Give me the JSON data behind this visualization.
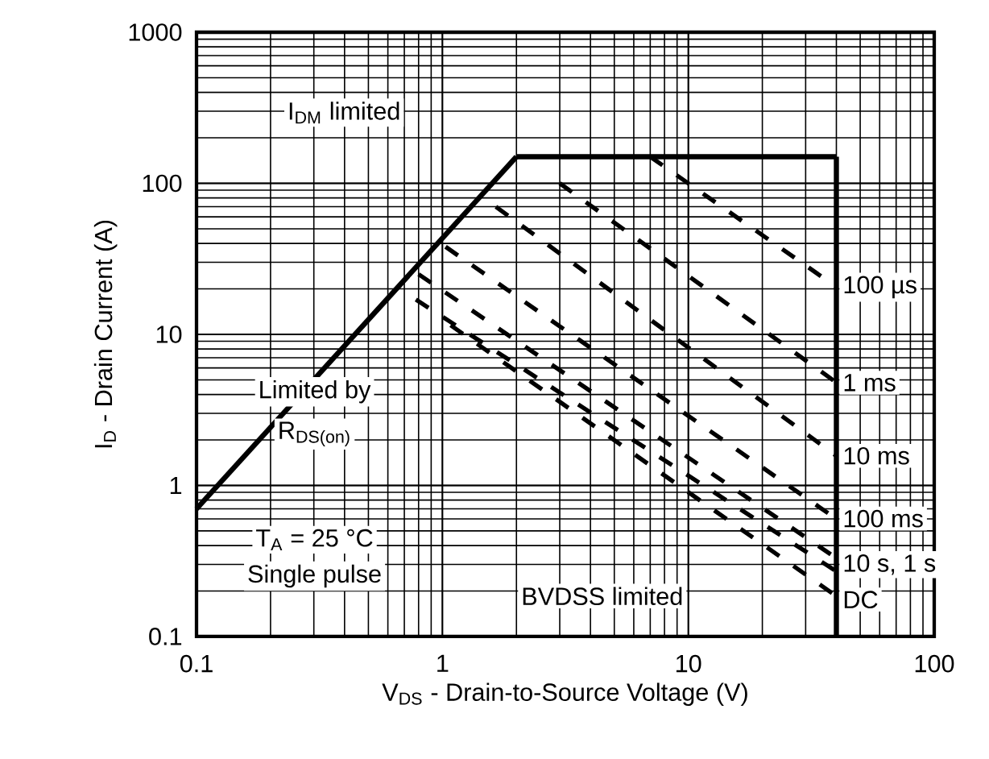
{
  "chart_data": {
    "type": "line",
    "xlabel": "V$_{DS}$ - Drain-to-Source Voltage (V)",
    "ylabel": "I$_{D}$ - Drain Current (A)",
    "log": "xy",
    "grid": true,
    "xlim": [
      0.1,
      100
    ],
    "ylim": [
      0.1,
      1000
    ],
    "xticks": [
      0.1,
      1,
      10,
      100
    ],
    "yticks": [
      0.1,
      1,
      10,
      100,
      1000
    ],
    "series": [
      {
        "x": [
          0.1,
          2
        ],
        "values": [
          0.7,
          150
        ],
        "color": "#000000",
        "line_style": "solid"
      },
      {
        "x": [
          2,
          40
        ],
        "values": [
          150,
          150
        ],
        "color": "#000000",
        "line_style": "solid"
      },
      {
        "x": [
          40,
          40
        ],
        "values": [
          150,
          0.1
        ],
        "color": "#000000",
        "line_style": "solid"
      },
      {
        "x": [
          7,
          40
        ],
        "values": [
          150,
          20.6
        ],
        "color": "#000000",
        "line_style": "dashed"
      },
      {
        "x": [
          3,
          40
        ],
        "values": [
          100,
          4.8
        ],
        "color": "#000000",
        "line_style": "dashed"
      },
      {
        "x": [
          1.65,
          40
        ],
        "values": [
          70,
          1.57
        ],
        "color": "#000000",
        "line_style": "dashed"
      },
      {
        "x": [
          1.03,
          40
        ],
        "values": [
          38,
          0.6
        ],
        "color": "#000000",
        "line_style": "dashed"
      },
      {
        "x": [
          0.8,
          40
        ],
        "values": [
          25,
          0.33
        ],
        "color": "#000000",
        "line_style": "dashed"
      },
      {
        "x": [
          0.78,
          40
        ],
        "values": [
          17,
          0.27
        ],
        "color": "#000000",
        "line_style": "dashed"
      },
      {
        "x": [
          1.08,
          40
        ],
        "values": [
          11.5,
          0.185
        ],
        "color": "#000000",
        "line_style": "dashed"
      }
    ],
    "annotations": [
      "I$_{DM}$ limited",
      "Limited by",
      "R$_{DS(on)}$",
      "T$_{A}$ = 25 °C",
      "Single pulse",
      "BVDSS limited",
      "100 µs",
      "1 ms",
      "10 ms",
      "100 ms",
      "10 s, 1 s",
      "DC"
    ]
  }
}
